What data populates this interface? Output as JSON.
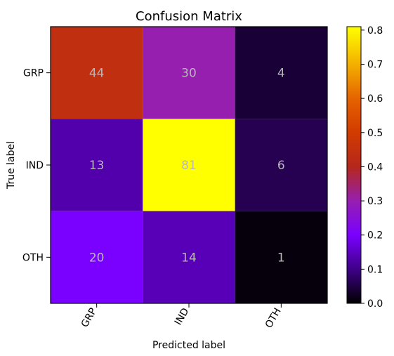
{
  "chart_data": {
    "type": "heatmap",
    "title": "Confusion Matrix",
    "xlabel": "Predicted label",
    "ylabel": "True label",
    "x_categories": [
      "GRP",
      "IND",
      "OTH"
    ],
    "y_categories": [
      "GRP",
      "IND",
      "OTH"
    ],
    "values": [
      [
        44,
        30,
        4
      ],
      [
        13,
        81,
        6
      ],
      [
        20,
        14,
        1
      ]
    ],
    "normalized_values": [
      [
        0.44,
        0.3,
        0.04
      ],
      [
        0.13,
        0.81,
        0.06
      ],
      [
        0.2,
        0.14,
        0.01
      ]
    ],
    "colorbar": {
      "min": 0.0,
      "max": 0.81,
      "ticks": [
        "0.0",
        "0.1",
        "0.2",
        "0.3",
        "0.4",
        "0.5",
        "0.6",
        "0.7",
        "0.8"
      ],
      "tick_values": [
        0.0,
        0.1,
        0.2,
        0.3,
        0.4,
        0.5,
        0.6,
        0.7,
        0.8
      ],
      "colormap": "gnuplot"
    },
    "cell_text_color": "#b8b8b8",
    "axis_color": "#000000"
  }
}
